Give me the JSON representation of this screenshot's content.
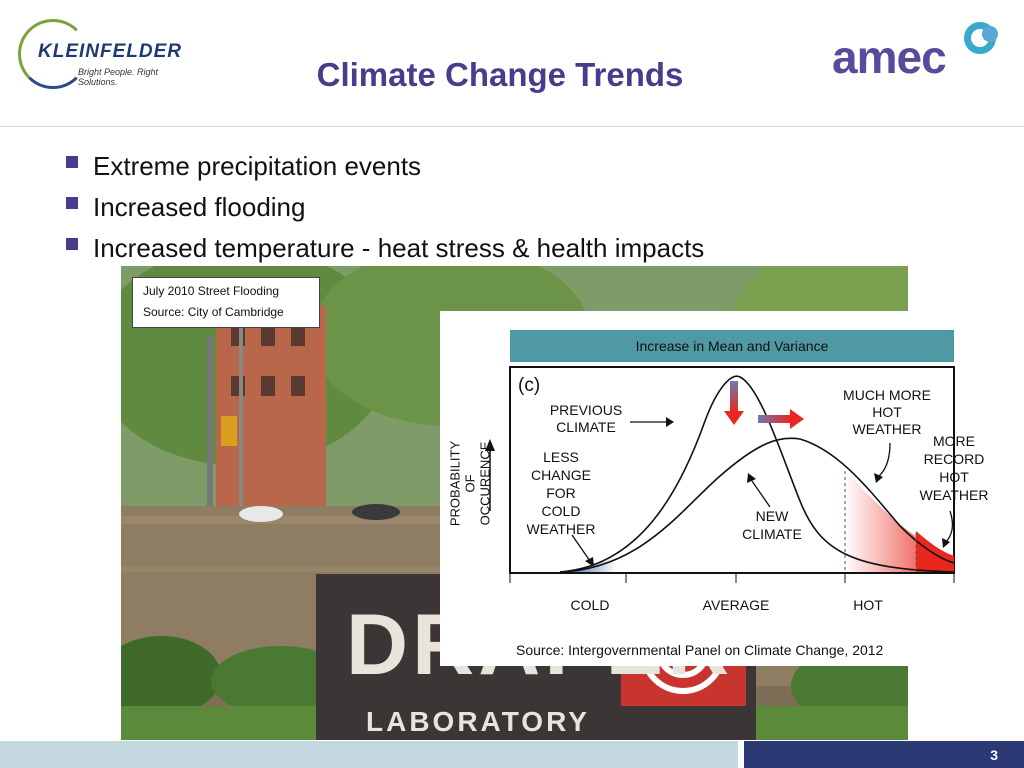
{
  "slide": {
    "title": "Climate Change Trends",
    "page_number": "3",
    "bullets": [
      "Extreme precipitation events",
      "Increased flooding",
      "Increased temperature - heat stress & health impacts"
    ]
  },
  "logos": {
    "left": {
      "name": "KLEINFELDER",
      "tagline": "Bright People. Right Solutions."
    },
    "right": {
      "name": "amec"
    }
  },
  "photo": {
    "caption_line1": "July 2010 Street Flooding",
    "caption_line2": "Source: City of Cambridge",
    "sign_text": "DRAPER",
    "sign_subtext": "LABORATORY"
  },
  "figure": {
    "band_title": "Increase in Mean and Variance",
    "panel_label": "(c)",
    "ylabel_line1": "PROBABILITY OF",
    "ylabel_line2": "OCCURENCE",
    "x_ticks": [
      "COLD",
      "AVERAGE",
      "HOT"
    ],
    "annotations": {
      "previous_climate": [
        "PREVIOUS",
        "CLIMATE"
      ],
      "less_cold": [
        "LESS",
        "CHANGE",
        "FOR",
        "COLD",
        "WEATHER"
      ],
      "new_climate": [
        "NEW",
        "CLIMATE"
      ],
      "much_more_hot": [
        "MUCH MORE",
        "HOT",
        "WEATHER"
      ],
      "more_record_hot": [
        "MORE",
        "RECORD",
        "HOT",
        "WEATHER"
      ]
    },
    "source": "Source: Intergovernmental Panel on Climate Change, 2012"
  },
  "colors": {
    "title": "#4a3c8c",
    "bullet": "#4a3c8c",
    "band": "#4f99a4",
    "footer_light": "#c3d8df",
    "footer_dark": "#2b3a75",
    "hot_fill": "#e8281e"
  }
}
